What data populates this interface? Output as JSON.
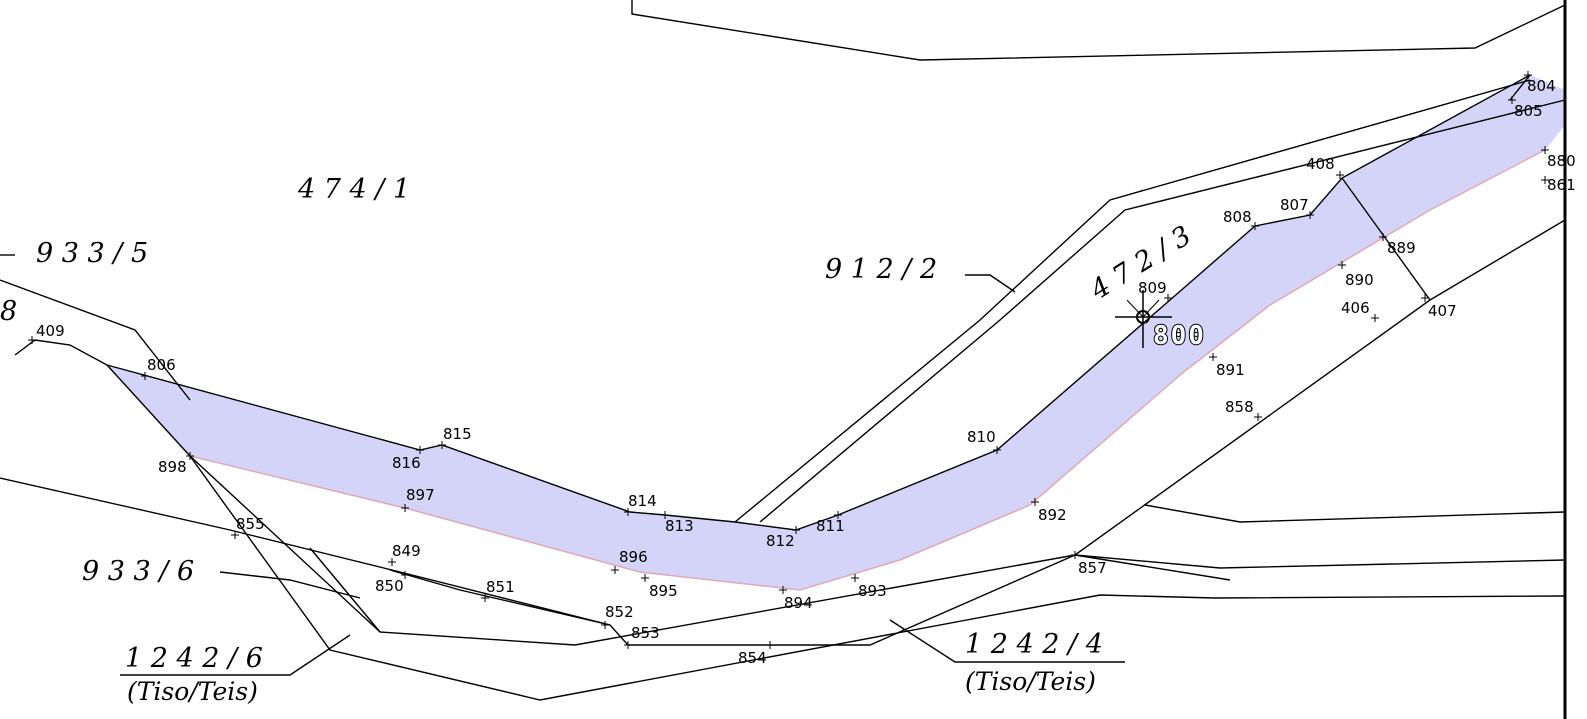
{
  "colors": {
    "road_fill": "#d4d4f8",
    "road_edge": "#e0a8b8",
    "line": "#000000"
  },
  "parcels": [
    {
      "label": "4 7 4 / 1"
    },
    {
      "label": "9 3 3 / 5"
    },
    {
      "label": "9 1 2 / 2"
    },
    {
      "label": "4 7 2 / 3"
    },
    {
      "label": "9 3 3 / 6"
    },
    {
      "label": "1 2 4 2 / 6",
      "sublabel": "(Tiso/Teis)"
    },
    {
      "label": "1 2 4 2 / 4",
      "sublabel": "(Tiso/Teis)"
    },
    {
      "label": "8"
    }
  ],
  "station": {
    "label": "800",
    "icon": "survey-station-icon"
  },
  "points": [
    "409",
    "806",
    "898",
    "816",
    "815",
    "897",
    "855",
    "849",
    "850",
    "851",
    "852",
    "853",
    "854",
    "814",
    "813",
    "896",
    "895",
    "894",
    "812",
    "811",
    "893",
    "810",
    "892",
    "857",
    "858",
    "891",
    "809",
    "808",
    "807",
    "408",
    "889",
    "890",
    "406",
    "407",
    "804",
    "805",
    "880",
    "861"
  ]
}
